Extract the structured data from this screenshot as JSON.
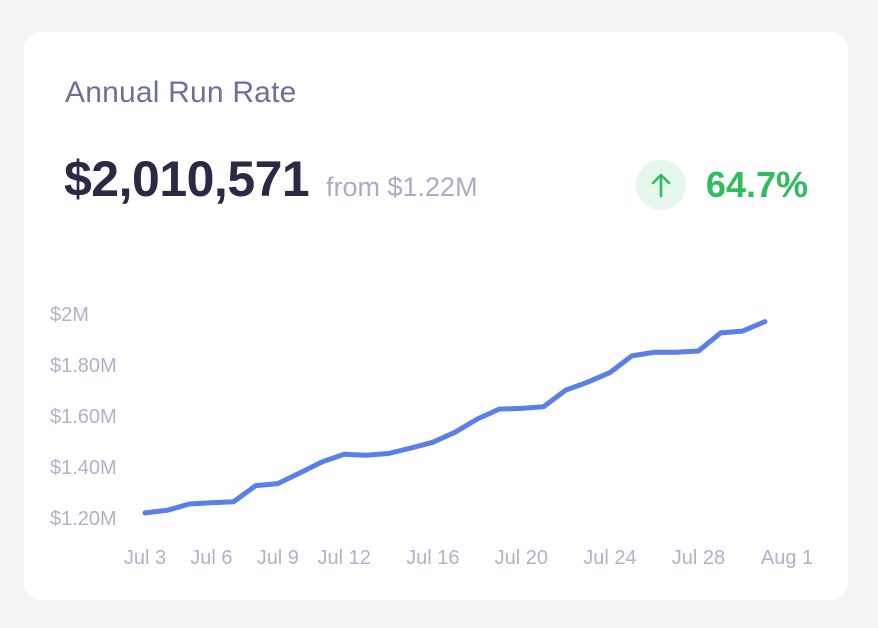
{
  "card": {
    "title": "Annual Run Rate",
    "value": "$2,010,571",
    "from_text": "from $1.22M",
    "change": "64.7%",
    "change_icon": "arrow-up-icon"
  },
  "colors": {
    "line": "#5b7fe8",
    "positive": "#2fbe5d",
    "positive_bg": "#e6f6ea",
    "title": "#6f6f9e",
    "value": "#2a2a45",
    "muted": "#a9abc8"
  },
  "chart_data": {
    "type": "line",
    "title": "",
    "xlabel": "",
    "ylabel": "",
    "grid": false,
    "ylim": [
      1.2,
      2.0
    ],
    "yticks": [
      2.0,
      1.8,
      1.6,
      1.4,
      1.2
    ],
    "ytick_labels": [
      "$2M",
      "$1.80M",
      "$1.60M",
      "$1.40M",
      "$1.20M"
    ],
    "xticks": [
      3,
      6,
      9,
      12,
      16,
      20,
      24,
      28,
      32
    ],
    "xtick_labels": [
      "Jul 3",
      "Jul 6",
      "Jul 9",
      "Jul 12",
      "Jul 16",
      "Jul 20",
      "Jul 24",
      "Jul 28",
      "Aug 1"
    ],
    "series": [
      {
        "x": [
          3,
          4,
          5,
          6,
          7,
          8,
          9,
          10,
          11,
          12,
          13,
          14,
          15,
          16,
          17,
          18,
          19,
          20,
          21,
          22,
          23,
          24,
          25,
          26,
          27,
          28,
          29,
          30,
          31
        ],
        "values": [
          1.22,
          1.23,
          1.255,
          1.26,
          1.264,
          1.327,
          1.335,
          1.377,
          1.42,
          1.45,
          1.446,
          1.453,
          1.474,
          1.497,
          1.536,
          1.588,
          1.627,
          1.63,
          1.636,
          1.701,
          1.733,
          1.77,
          1.836,
          1.85,
          1.85,
          1.855,
          1.926,
          1.933,
          1.97
        ]
      }
    ]
  }
}
